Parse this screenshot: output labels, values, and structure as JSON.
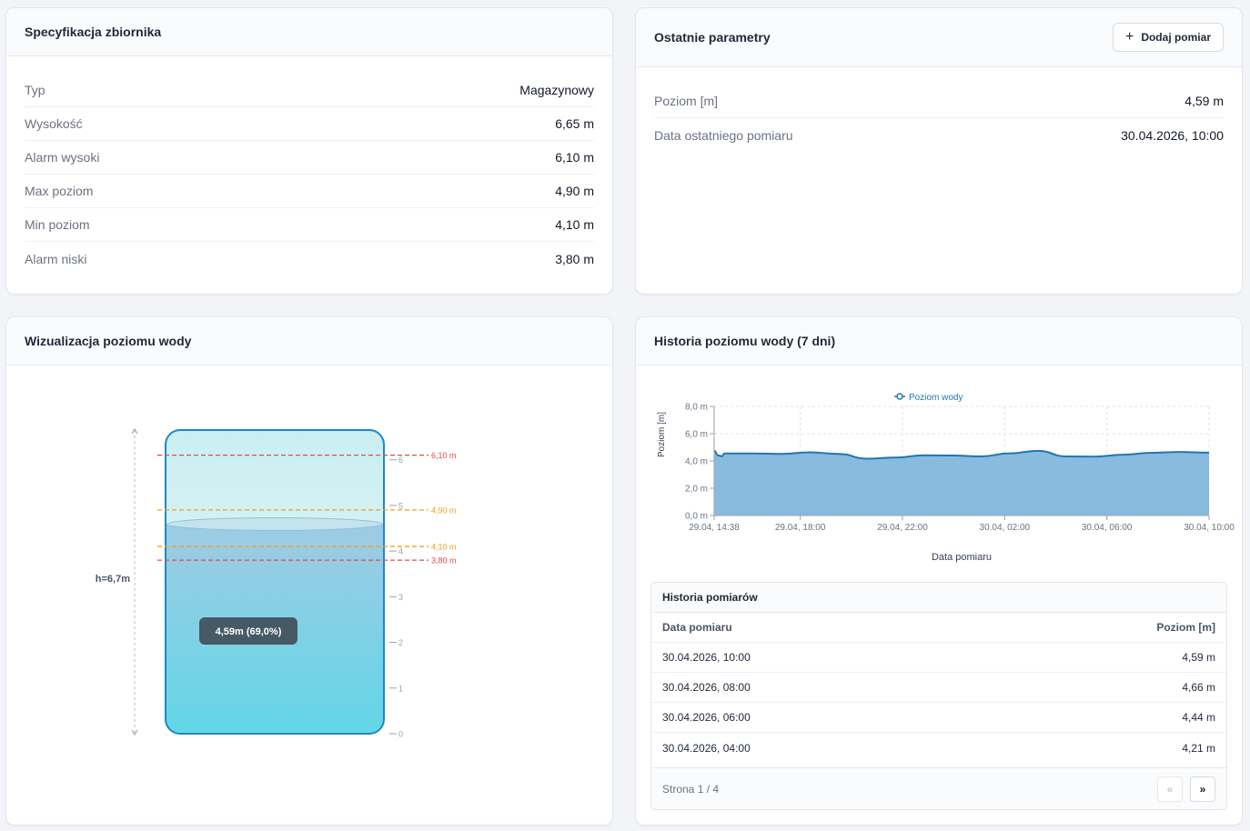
{
  "spec": {
    "title": "Specyfikacja zbiornika",
    "rows": [
      {
        "label": "Typ",
        "value": "Magazynowy"
      },
      {
        "label": "Wysokość",
        "value": "6,65 m"
      },
      {
        "label": "Alarm wysoki",
        "value": "6,10 m"
      },
      {
        "label": "Max poziom",
        "value": "4,90 m"
      },
      {
        "label": "Min poziom",
        "value": "4,10 m"
      },
      {
        "label": "Alarm niski",
        "value": "3,80 m"
      }
    ]
  },
  "params": {
    "title": "Ostatnie parametry",
    "add_button": "Dodaj pomiar",
    "rows": [
      {
        "label": "Poziom [m]",
        "value": "4,59 m"
      },
      {
        "label": "Data ostatniego pomiaru",
        "value": "30.04.2026, 10:00"
      }
    ]
  },
  "viz": {
    "title": "Wizualizacja poziomu wody",
    "height_label": "h=6,7m",
    "level_badge": "4,59m (69,0%)",
    "tank_height_m": 6.65,
    "level_m": 4.59,
    "level_pct": 69.0,
    "ruler_ticks": [
      "0",
      "1",
      "2",
      "3",
      "4",
      "5",
      "6"
    ],
    "thresholds": [
      {
        "value": 6.1,
        "label": "6,10 m",
        "color": "#e5484d"
      },
      {
        "value": 4.9,
        "label": "4,90 m",
        "color": "#f0a020"
      },
      {
        "value": 4.1,
        "label": "4,10 m",
        "color": "#f0a020"
      },
      {
        "value": 3.8,
        "label": "3,80 m",
        "color": "#e5484d"
      }
    ],
    "colors": {
      "water_top": "#9fcbe4",
      "water_bottom": "#62d6e6",
      "tank_border": "#1e88c7"
    }
  },
  "history": {
    "title": "Historia poziomu wody (7 dni)",
    "chart_data": {
      "type": "area",
      "legend": "Poziom wody",
      "legend_position": "top-center",
      "ylabel": "Poziom [m]",
      "xlabel": "Data pomiaru",
      "ylim": [
        0,
        8
      ],
      "y_ticks": [
        "0,0 m",
        "2,0 m",
        "4,0 m",
        "6,0 m",
        "8,0 m"
      ],
      "x_ticks": [
        "29.04, 14:38",
        "29.04, 18:00",
        "29.04, 22:00",
        "30.04, 02:00",
        "30.04, 06:00",
        "30.04, 10:00"
      ],
      "grid": true,
      "color": "#1f77b4",
      "fill": "#88bbde",
      "x_hours": [
        0,
        0.37,
        0.7,
        0.9,
        3.4,
        5.9,
        8.4,
        10.9,
        13.4,
        15.9,
        18.4,
        20.9,
        23.4,
        25.9,
        28.4,
        30.9,
        33.4,
        35.9,
        38.4,
        40.9,
        43.4
      ],
      "values": [
        4.75,
        4.4,
        4.35,
        4.55,
        4.55,
        4.52,
        4.63,
        4.52,
        4.17,
        4.25,
        4.42,
        4.4,
        4.33,
        4.56,
        4.74,
        4.33,
        4.32,
        4.46,
        4.6,
        4.66,
        4.61
      ]
    },
    "table": {
      "title": "Historia pomiarów",
      "col_date": "Data pomiaru",
      "col_level": "Poziom [m]",
      "rows": [
        {
          "date": "30.04.2026, 10:00",
          "level": "4,59 m"
        },
        {
          "date": "30.04.2026, 08:00",
          "level": "4,66 m"
        },
        {
          "date": "30.04.2026, 06:00",
          "level": "4,44 m"
        },
        {
          "date": "30.04.2026, 04:00",
          "level": "4,21 m"
        }
      ],
      "page_label": "Strona 1 / 4",
      "prev_icon": "«",
      "next_icon": "»"
    }
  }
}
